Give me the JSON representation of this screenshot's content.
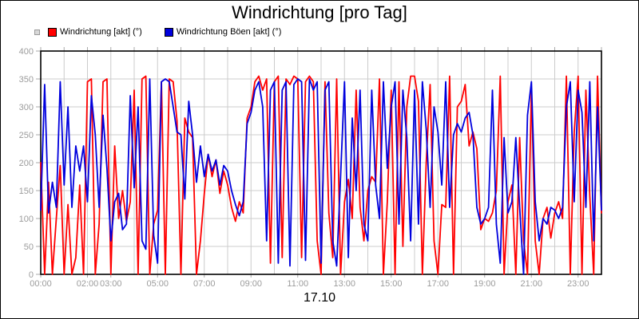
{
  "title": "Windrichtung [pro Tag]",
  "date_label": "17.10",
  "colors": {
    "series_akt": "#ff0000",
    "series_boeen": "#0000dd",
    "grid": "#cccccc",
    "axis_border": "#000000",
    "tick": "#aaaaaa",
    "tick_label": "#9c9c9c",
    "background": "#ffffff"
  },
  "legend": {
    "items": [
      {
        "label": "Windrichtung [akt] (°)",
        "color": "#ff0000"
      },
      {
        "label": "Windrichtung Böen [akt] (°)",
        "color": "#0000dd"
      }
    ]
  },
  "chart_data": {
    "type": "line",
    "title": "Windrichtung [pro Tag]",
    "xlabel": "17.10",
    "ylabel": "",
    "x_unit": "time (HH:MM)",
    "y_unit": "degrees",
    "xlim_minutes": [
      0,
      1440
    ],
    "ylim": [
      0,
      400
    ],
    "x_start_min": 0,
    "x_step_min": 10,
    "grid_x_every_min": 60,
    "grid_y_every": 50,
    "legend_position": "top-left",
    "yticks": [
      0,
      50,
      100,
      150,
      200,
      250,
      300,
      350,
      400
    ],
    "xticks": [
      {
        "min": 0,
        "label": "00:00"
      },
      {
        "min": 120,
        "label": "02:00"
      },
      {
        "min": 180,
        "label": "03:00"
      },
      {
        "min": 300,
        "label": "05:00"
      },
      {
        "min": 420,
        "label": "07:00"
      },
      {
        "min": 540,
        "label": "09:00"
      },
      {
        "min": 660,
        "label": "11:00"
      },
      {
        "min": 780,
        "label": "13:00"
      },
      {
        "min": 900,
        "label": "15:00"
      },
      {
        "min": 1020,
        "label": "17:00"
      },
      {
        "min": 1140,
        "label": "19:00"
      },
      {
        "min": 1260,
        "label": "21:00"
      },
      {
        "min": 1380,
        "label": "23:00"
      }
    ],
    "series": [
      {
        "name": "Windrichtung [akt] (°)",
        "color": "#ff0000",
        "values": [
          200,
          0,
          165,
          0,
          100,
          195,
          0,
          125,
          0,
          30,
          160,
          0,
          345,
          350,
          0,
          90,
          345,
          350,
          0,
          230,
          100,
          150,
          95,
          130,
          330,
          0,
          350,
          355,
          0,
          90,
          115,
          345,
          0,
          350,
          345,
          275,
          0,
          280,
          255,
          245,
          0,
          60,
          145,
          215,
          175,
          205,
          145,
          185,
          160,
          120,
          95,
          130,
          110,
          280,
          300,
          345,
          355,
          330,
          350,
          20,
          345,
          355,
          30,
          350,
          340,
          355,
          350,
          30,
          345,
          355,
          345,
          60,
          0,
          345,
          110,
          30,
          350,
          0,
          130,
          170,
          100,
          330,
          120,
          60,
          150,
          175,
          165,
          350,
          0,
          130,
          330,
          0,
          345,
          50,
          300,
          355,
          355,
          310,
          0,
          200,
          340,
          60,
          0,
          125,
          120,
          355,
          0,
          300,
          310,
          340,
          230,
          255,
          225,
          80,
          100,
          95,
          110,
          150,
          355,
          0,
          130,
          160,
          0,
          245,
          60,
          0,
          330,
          60,
          0,
          100,
          120,
          65,
          110,
          130,
          100,
          355,
          0,
          255,
          355,
          0,
          330,
          140,
          0,
          355,
          110
        ]
      },
      {
        "name": "Windrichtung Böen [akt] (°)",
        "color": "#0000dd",
        "values": [
          115,
          340,
          110,
          165,
          120,
          345,
          160,
          300,
          120,
          230,
          185,
          230,
          130,
          320,
          250,
          120,
          285,
          190,
          60,
          130,
          145,
          80,
          90,
          320,
          155,
          300,
          60,
          45,
          350,
          70,
          20,
          345,
          350,
          345,
          300,
          255,
          250,
          135,
          310,
          250,
          165,
          230,
          175,
          215,
          185,
          205,
          160,
          195,
          185,
          150,
          125,
          105,
          130,
          270,
          290,
          330,
          345,
          300,
          60,
          330,
          345,
          20,
          330,
          345,
          15,
          340,
          350,
          345,
          25,
          350,
          330,
          345,
          20,
          330,
          345,
          60,
          15,
          175,
          345,
          30,
          280,
          150,
          330,
          90,
          60,
          330,
          160,
          100,
          345,
          190,
          300,
          345,
          90,
          330,
          245,
          60,
          330,
          90,
          345,
          260,
          120,
          300,
          255,
          160,
          345,
          120,
          250,
          270,
          255,
          280,
          290,
          250,
          120,
          90,
          100,
          120,
          330,
          90,
          20,
          245,
          110,
          130,
          245,
          120,
          0,
          285,
          345,
          130,
          60,
          100,
          90,
          120,
          115,
          100,
          120,
          300,
          345,
          130,
          330,
          290,
          120,
          345,
          60,
          300,
          115
        ]
      }
    ]
  }
}
